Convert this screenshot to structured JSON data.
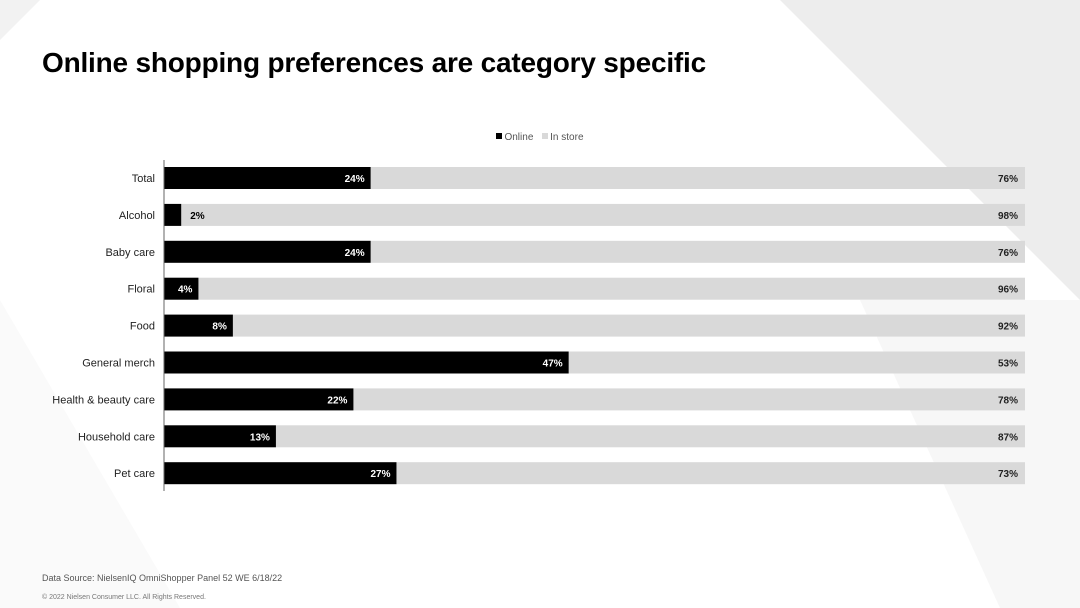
{
  "title": "Online shopping preferences are category specific",
  "footer": {
    "source": "Data Source: NielsenIQ OmniShopper Panel 52 WE 6/18/22",
    "copyright": "© 2022 Nielsen Consumer LLC. All Rights Reserved."
  },
  "colors": {
    "online": "#000000",
    "in_store": "#d9d9d9"
  },
  "chart_data": {
    "type": "bar",
    "orientation": "horizontal",
    "stacked": true,
    "legend_position": "top",
    "grid": false,
    "xlim": [
      0,
      100
    ],
    "categories": [
      "Total",
      "Alcohol",
      "Baby care",
      "Floral",
      "Food",
      "General merch",
      "Health & beauty care",
      "Household care",
      "Pet care"
    ],
    "series": [
      {
        "name": "Online",
        "values": [
          24,
          2,
          24,
          4,
          8,
          47,
          22,
          13,
          27
        ]
      },
      {
        "name": "In store",
        "values": [
          76,
          98,
          76,
          96,
          92,
          53,
          78,
          87,
          73
        ]
      }
    ]
  }
}
